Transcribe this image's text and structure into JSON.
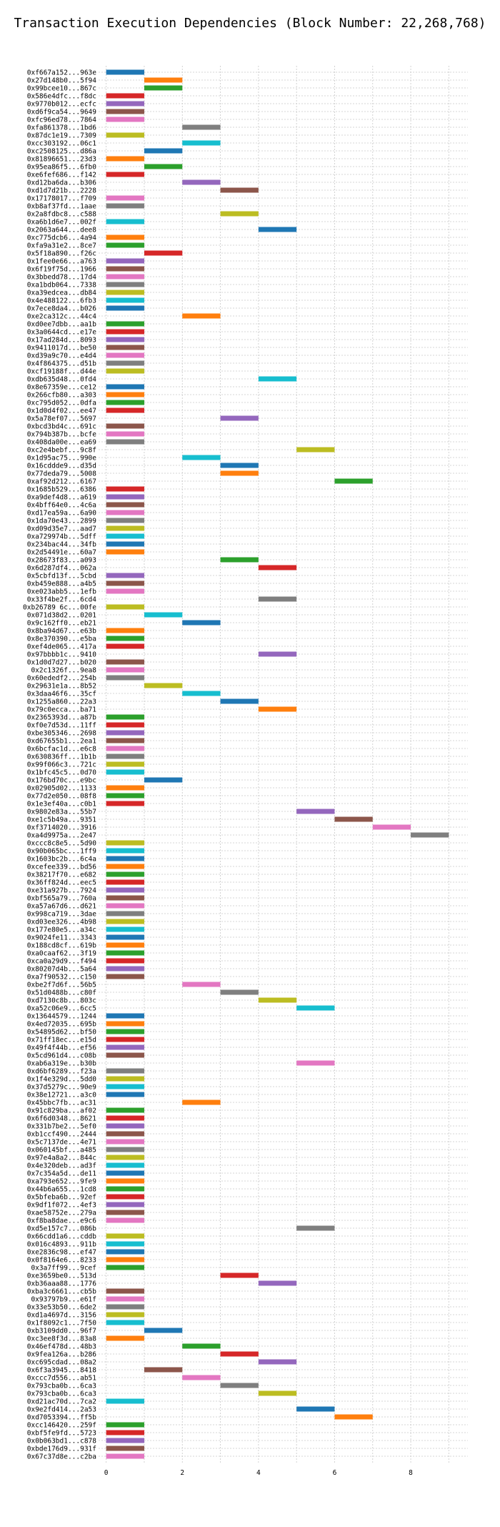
{
  "chart_data": {
    "type": "gantt-bar",
    "title": "Transaction Execution Dependencies (Block Number: 22,268,768)",
    "xlabel": "",
    "ylabel": "",
    "xlim": [
      -0.2,
      9.5
    ],
    "xticks": [
      0,
      2,
      4,
      6,
      8
    ],
    "grid": true,
    "colors": [
      "#1f77b4",
      "#ff7f0e",
      "#2ca02c",
      "#d62728",
      "#9467bd",
      "#8c564b",
      "#e377c2",
      "#7f7f7f",
      "#bcbd22",
      "#17becf"
    ],
    "transactions": [
      {
        "label": "0xf667a152...963e",
        "start": 0
      },
      {
        "label": "0x27d148b0...5f94",
        "start": 1
      },
      {
        "label": "0x99bcee10...867c",
        "start": 1
      },
      {
        "label": "0x586e4dfc...f8dc",
        "start": 0
      },
      {
        "label": "0x9770b012...ecfc",
        "start": 0
      },
      {
        "label": "0xd6f9ca54...9649",
        "start": 0
      },
      {
        "label": "0xfc96ed78...7864",
        "start": 0
      },
      {
        "label": "0xfa861378...1bd6",
        "start": 2
      },
      {
        "label": "0x87dc1e19...7309",
        "start": 0
      },
      {
        "label": "0xcc303192...06c1",
        "start": 2
      },
      {
        "label": "0xc2508125...d86a",
        "start": 1
      },
      {
        "label": "0x81896651...23d3",
        "start": 0
      },
      {
        "label": "0x95ea86f5...6fb0",
        "start": 1
      },
      {
        "label": "0xe6fef686...f142",
        "start": 0
      },
      {
        "label": "0xd12ba6da...b306",
        "start": 2
      },
      {
        "label": "0xd1d7d21b...2228",
        "start": 3
      },
      {
        "label": "0x17178017...f709",
        "start": 0
      },
      {
        "label": "0xb8af37fd...1aae",
        "start": 0
      },
      {
        "label": "0x2a8fdbc8...c588",
        "start": 3
      },
      {
        "label": "0xa6b1d6e7...002f",
        "start": 0
      },
      {
        "label": "0x2063a644...dee8",
        "start": 4
      },
      {
        "label": "0xc775dcb6...4a94",
        "start": 0
      },
      {
        "label": "0xfa9a31e2...8ce7",
        "start": 0
      },
      {
        "label": "0x5f18a890...f26c",
        "start": 1
      },
      {
        "label": "0x1fee0e66...a763",
        "start": 0
      },
      {
        "label": "0x6f19f75d...1966",
        "start": 0
      },
      {
        "label": "0x3bbedd78...17d4",
        "start": 0
      },
      {
        "label": "0xa1bdb064...7338",
        "start": 0
      },
      {
        "label": "0xa39edcea...db84",
        "start": 0
      },
      {
        "label": "0x4e488122...6fb3",
        "start": 0
      },
      {
        "label": "0x7ece8da4...b026",
        "start": 0
      },
      {
        "label": "0xe2ca312c...44c4",
        "start": 2
      },
      {
        "label": "0xd0ee7dbb...aa1b",
        "start": 0
      },
      {
        "label": "0x3a0644cd...e17e",
        "start": 0
      },
      {
        "label": "0x17ad284d...8093",
        "start": 0
      },
      {
        "label": "0x9411017d...be50",
        "start": 0
      },
      {
        "label": "0xd39a9c70...e4d4",
        "start": 0
      },
      {
        "label": "0x4f864375...d51b",
        "start": 0
      },
      {
        "label": "0xcf19188f...d44e",
        "start": 0
      },
      {
        "label": "0xdb635d48...0fd4",
        "start": 4
      },
      {
        "label": "0x8e67359e...ce12",
        "start": 0
      },
      {
        "label": "0x266cfb80...a303",
        "start": 0
      },
      {
        "label": "0xc795d052...0dfa",
        "start": 0
      },
      {
        "label": "0x1d0d4f02...ee47",
        "start": 0
      },
      {
        "label": "0x5a78ef07...5697",
        "start": 3
      },
      {
        "label": "0xbcd3bd4c...691c",
        "start": 0
      },
      {
        "label": "0x794b387b...bcfe",
        "start": 0
      },
      {
        "label": "0x408da00e...ea69",
        "start": 0
      },
      {
        "label": "0xc2e4bebf...9c8f",
        "start": 5
      },
      {
        "label": "0x1d95ac75...990e",
        "start": 2
      },
      {
        "label": "0x16cddde9...d35d",
        "start": 3
      },
      {
        "label": "0x77deda79...5008",
        "start": 3
      },
      {
        "label": "0xaf92d212...6167",
        "start": 6
      },
      {
        "label": "0x1685b529...6386",
        "start": 0
      },
      {
        "label": "0xa9def4d8...a619",
        "start": 0
      },
      {
        "label": "0x4bff64e0...4c6a",
        "start": 0
      },
      {
        "label": "0xd17ea59a...6a90",
        "start": 0
      },
      {
        "label": "0x1da70e43...2899",
        "start": 0
      },
      {
        "label": "0xd09d35e7...aad7",
        "start": 0
      },
      {
        "label": "0xa729974b...5dff",
        "start": 0
      },
      {
        "label": "0x234bac44...34fb",
        "start": 0
      },
      {
        "label": "0x2d54491e...60a7",
        "start": 0
      },
      {
        "label": "0x28673f83...a093",
        "start": 3
      },
      {
        "label": "0x6d287df4...062a",
        "start": 4
      },
      {
        "label": "0x5cbfd13f...5cbd",
        "start": 0
      },
      {
        "label": "0xb459e888...a4b5",
        "start": 0
      },
      {
        "label": "0xe023abb5...1efb",
        "start": 0
      },
      {
        "label": "0x33f4be2f...6cd4",
        "start": 4
      },
      {
        "label": "0xb26789 6c...00fe",
        "start": 0
      },
      {
        "label": "0x071d38d2...0201",
        "start": 1
      },
      {
        "label": "0x9c162ff0...eb21",
        "start": 2
      },
      {
        "label": "0x8ba94d67...e63b",
        "start": 0
      },
      {
        "label": "0x8e370390...e5ba",
        "start": 0
      },
      {
        "label": "0xef4de065...417a",
        "start": 0
      },
      {
        "label": "0x97bbbb1c...9410",
        "start": 4
      },
      {
        "label": "0x1d0d7d27...b020",
        "start": 0
      },
      {
        "label": "0x2c1326f...9ea8",
        "start": 0
      },
      {
        "label": "0x60ededf2...254b",
        "start": 0
      },
      {
        "label": "0x29631e1a...8b52",
        "start": 1
      },
      {
        "label": "0x3daa46f6...35cf",
        "start": 2
      },
      {
        "label": "0x1255a860...22a3",
        "start": 3
      },
      {
        "label": "0x79c0ecca...ba71",
        "start": 4
      },
      {
        "label": "0x2365393d...a87b",
        "start": 0
      },
      {
        "label": "0xf0e7d53d...11ff",
        "start": 0
      },
      {
        "label": "0xbe305346...2698",
        "start": 0
      },
      {
        "label": "0xd67655b1...2ea1",
        "start": 0
      },
      {
        "label": "0x6bcfac1d...e6c8",
        "start": 0
      },
      {
        "label": "0x630836ff...1b1b",
        "start": 0
      },
      {
        "label": "0x99f066c3...721c",
        "start": 0
      },
      {
        "label": "0x1bfc45c5...0d70",
        "start": 0
      },
      {
        "label": "0x176bd70c...e9bc",
        "start": 1
      },
      {
        "label": "0x02905d02...1133",
        "start": 0
      },
      {
        "label": "0x77d2e050...08f8",
        "start": 0
      },
      {
        "label": "0x1e3ef40a...c0b1",
        "start": 0
      },
      {
        "label": "0x9802e83a...55b7",
        "start": 5
      },
      {
        "label": "0xe1c5b49a...9351",
        "start": 6
      },
      {
        "label": "0xf3714020...3916",
        "start": 7
      },
      {
        "label": "0xa4d9975a...2e47",
        "start": 8
      },
      {
        "label": "0xccc8c8e5...5d90",
        "start": 0
      },
      {
        "label": "0x90b065bc...1ff9",
        "start": 0
      },
      {
        "label": "0x1603bc2b...6c4a",
        "start": 0
      },
      {
        "label": "0xcefee339...bd56",
        "start": 0
      },
      {
        "label": "0x38217f70...e682",
        "start": 0
      },
      {
        "label": "0x36ff824d...eec5",
        "start": 0
      },
      {
        "label": "0xe31a927b...7924",
        "start": 0
      },
      {
        "label": "0xbf565a79...760a",
        "start": 0
      },
      {
        "label": "0xa57a67d6...d621",
        "start": 0
      },
      {
        "label": "0x998ca719...3dae",
        "start": 0
      },
      {
        "label": "0xd03ee326...4b98",
        "start": 0
      },
      {
        "label": "0x177e80e5...a34c",
        "start": 0
      },
      {
        "label": "0x9024fe11...3343",
        "start": 0
      },
      {
        "label": "0x188cd8cf...619b",
        "start": 0
      },
      {
        "label": "0xa0caaf62...3f19",
        "start": 0
      },
      {
        "label": "0xca0a29d9...f494",
        "start": 0
      },
      {
        "label": "0x80207d4b...5a64",
        "start": 0
      },
      {
        "label": "0xa7f90532...c150",
        "start": 0
      },
      {
        "label": "0xbe2f7d6f...56b5",
        "start": 2
      },
      {
        "label": "0x51d0488b...c80f",
        "start": 3
      },
      {
        "label": "0xd7130c8b...803c",
        "start": 4
      },
      {
        "label": "0xa52c06e9...6cc5",
        "start": 5
      },
      {
        "label": "0x13644579...1244",
        "start": 0
      },
      {
        "label": "0x4ed72035...695b",
        "start": 0
      },
      {
        "label": "0x54895d62...bf50",
        "start": 0
      },
      {
        "label": "0x71ff18ec...e15d",
        "start": 0
      },
      {
        "label": "0x49f4f44b...ef56",
        "start": 0
      },
      {
        "label": "0x5cd961d4...c08b",
        "start": 0
      },
      {
        "label": "0xab6a319e...b30b",
        "start": 5
      },
      {
        "label": "0xd6bf6289...f23a",
        "start": 0
      },
      {
        "label": "0x1f4e329d...5dd0",
        "start": 0
      },
      {
        "label": "0x37d5279c...90e9",
        "start": 0
      },
      {
        "label": "0x38e12721...a3c0",
        "start": 0
      },
      {
        "label": "0x45bbc7fb...ac31",
        "start": 2
      },
      {
        "label": "0x91c829ba...af02",
        "start": 0
      },
      {
        "label": "0x6f6d0348...8621",
        "start": 0
      },
      {
        "label": "0x331b7be2...5ef0",
        "start": 0
      },
      {
        "label": "0xb1ccf490...2444",
        "start": 0
      },
      {
        "label": "0x5c7137de...4e71",
        "start": 0
      },
      {
        "label": "0x060145bf...a485",
        "start": 0
      },
      {
        "label": "0x97e4a8a2...844c",
        "start": 0
      },
      {
        "label": "0x4e320deb...ad3f",
        "start": 0
      },
      {
        "label": "0x7c354a5d...de11",
        "start": 0
      },
      {
        "label": "0xa793e652...9fe9",
        "start": 0
      },
      {
        "label": "0x44b6a655...1cd8",
        "start": 0
      },
      {
        "label": "0x5bfeba6b...92ef",
        "start": 0
      },
      {
        "label": "0x9df1f072...4ef3",
        "start": 0
      },
      {
        "label": "0xae58752e...279a",
        "start": 0
      },
      {
        "label": "0xf8ba8dae...e9c6",
        "start": 0
      },
      {
        "label": "0xd5e157c7...086b",
        "start": 5
      },
      {
        "label": "0x66cdd1a6...cddb",
        "start": 0
      },
      {
        "label": "0x016c4893...911b",
        "start": 0
      },
      {
        "label": "0xe2836c98...ef47",
        "start": 0
      },
      {
        "label": "0x0f8164e6...8233",
        "start": 0
      },
      {
        "label": "0x3a7ff99...9cef",
        "start": 0
      },
      {
        "label": "0xe3659be0...513d",
        "start": 3
      },
      {
        "label": "0xb36aaa88...1776",
        "start": 4
      },
      {
        "label": "0xba3c6661...cb5b",
        "start": 0
      },
      {
        "label": "0x93797b9...e61f",
        "start": 0
      },
      {
        "label": "0x33e53b50...6de2",
        "start": 0
      },
      {
        "label": "0xd1a4697d...3156",
        "start": 0
      },
      {
        "label": "0x1f8092c1...7f50",
        "start": 0
      },
      {
        "label": "0xb3109dd0...96f7",
        "start": 1
      },
      {
        "label": "0xc3ee8f3d...83a8",
        "start": 0
      },
      {
        "label": "0x46ef478d...48b3",
        "start": 2
      },
      {
        "label": "0x9fea126a...b286",
        "start": 3
      },
      {
        "label": "0xc695cdad...08a2",
        "start": 4
      },
      {
        "label": "0x6f3a3945...8418",
        "start": 1
      },
      {
        "label": "0xccc7d556...ab51",
        "start": 2
      },
      {
        "label": "0x793cba0b...6ca3",
        "start": 3
      },
      {
        "label": "0x793cba0b...6ca3",
        "start": 4
      },
      {
        "label": "0xd21ac70d...7ca2",
        "start": 0
      },
      {
        "label": "0x9e2fd414...2a53",
        "start": 5
      },
      {
        "label": "0xd7053394...ff5b",
        "start": 6
      },
      {
        "label": "0xcc146420...259f",
        "start": 0
      },
      {
        "label": "0xbf5fe9fd...5723",
        "start": 0
      },
      {
        "label": "0x0b063bd1...c878",
        "start": 0
      },
      {
        "label": "0xbde176d9...931f",
        "start": 0
      },
      {
        "label": "0x67c37d8e...c2ba",
        "start": 0
      }
    ]
  }
}
